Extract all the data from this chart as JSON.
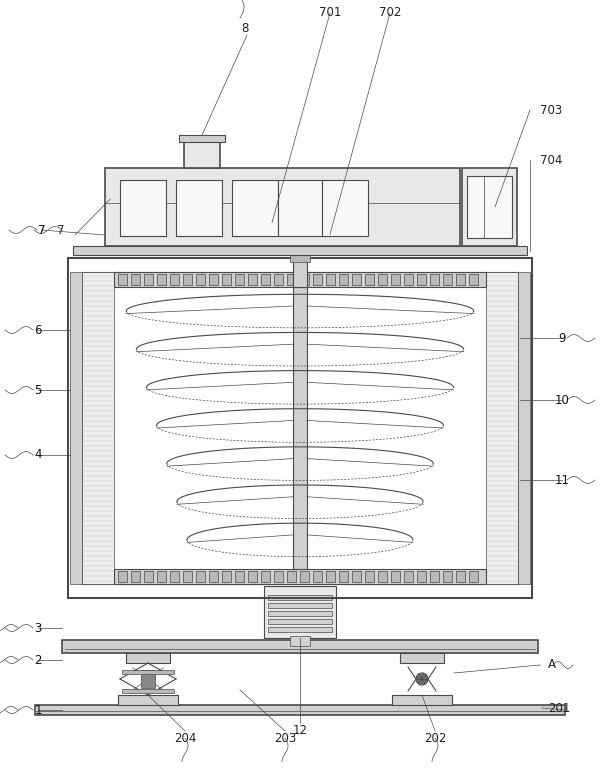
{
  "lc": "#4a4a4a",
  "lc2": "#666666",
  "fc_light": "#e8e8e8",
  "fc_med": "#d0d0d0",
  "fc_dark": "#b8b8b8",
  "fc_white": "#f8f8f8",
  "hatch_color": "#999999",
  "figw": 6.0,
  "figh": 7.73,
  "dpi": 100
}
